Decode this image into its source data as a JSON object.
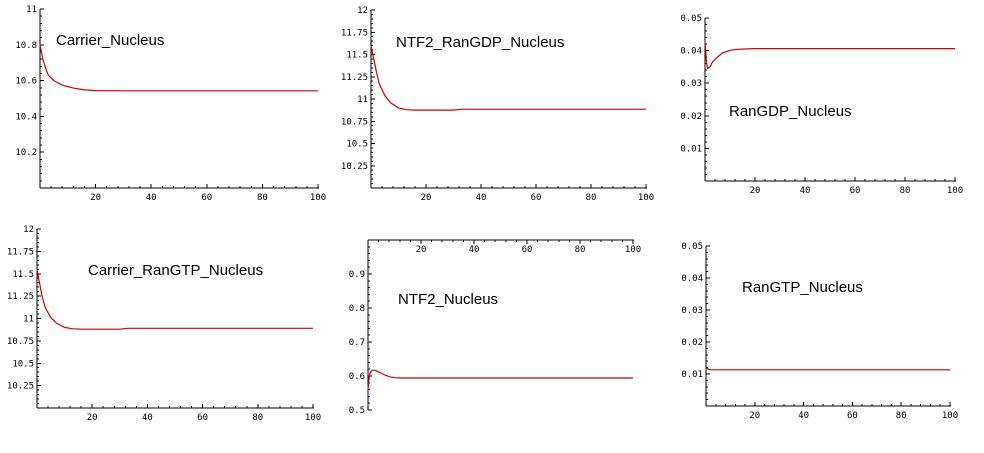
{
  "chart_data": [
    {
      "type": "line",
      "title": "Carrier_Nucleus",
      "xlim": [
        0,
        100
      ],
      "ylim": [
        10,
        11
      ],
      "x_ticks": [
        "20",
        "40",
        "60",
        "80",
        "100"
      ],
      "y_ticks": [
        "10.2",
        "10.4",
        "10.6",
        "10.8",
        "11"
      ],
      "series": [
        {
          "x": [
            0,
            1,
            2,
            3,
            5,
            8,
            12,
            16,
            20,
            30,
            50,
            100
          ],
          "y": [
            10.8,
            10.72,
            10.67,
            10.63,
            10.6,
            10.575,
            10.558,
            10.548,
            10.544,
            10.543,
            10.543,
            10.543
          ]
        }
      ]
    },
    {
      "type": "line",
      "title": "NTF2_RanGDP_Nucleus",
      "xlim": [
        0,
        100
      ],
      "ylim": [
        10,
        12
      ],
      "x_ticks": [
        "20",
        "40",
        "60",
        "80",
        "100"
      ],
      "y_ticks": [
        "10.25",
        "10.5",
        "10.75",
        "11",
        "11.25",
        "11.5",
        "11.75",
        "12"
      ],
      "series": [
        {
          "x": [
            0,
            1,
            2,
            3,
            5,
            7,
            10,
            13,
            16,
            20,
            30,
            33,
            50,
            100
          ],
          "y": [
            11.6,
            11.45,
            11.3,
            11.17,
            11.04,
            10.96,
            10.9,
            10.88,
            10.875,
            10.875,
            10.875,
            10.885,
            10.885,
            10.885
          ]
        }
      ]
    },
    {
      "type": "line",
      "title": "RanGDP_Nucleus",
      "xlim": [
        0,
        100
      ],
      "ylim": [
        0,
        0.05
      ],
      "x_ticks": [
        "20",
        "40",
        "60",
        "80",
        "100"
      ],
      "y_ticks": [
        "0.01",
        "0.02",
        "0.03",
        "0.04",
        "0.05"
      ],
      "series": [
        {
          "x": [
            0,
            0.5,
            1,
            2,
            3,
            5,
            7,
            10,
            13,
            16,
            20,
            30,
            50,
            100
          ],
          "y": [
            0.043,
            0.037,
            0.0345,
            0.035,
            0.0365,
            0.038,
            0.0393,
            0.0401,
            0.0404,
            0.0405,
            0.0406,
            0.0406,
            0.0406,
            0.0406
          ]
        }
      ]
    },
    {
      "type": "line",
      "title": "Carrier_RanGTP_Nucleus",
      "xlim": [
        0,
        100
      ],
      "ylim": [
        10,
        12
      ],
      "x_ticks": [
        "20",
        "40",
        "60",
        "80",
        "100"
      ],
      "y_ticks": [
        "10.25",
        "10.5",
        "10.75",
        "11",
        "11.25",
        "11.5",
        "11.75",
        "12"
      ],
      "series": [
        {
          "x": [
            0,
            1,
            2,
            3,
            5,
            7,
            10,
            13,
            16,
            20,
            30,
            33,
            50,
            100
          ],
          "y": [
            11.55,
            11.38,
            11.23,
            11.12,
            11.01,
            10.95,
            10.9,
            10.885,
            10.88,
            10.88,
            10.88,
            10.89,
            10.89,
            10.89
          ]
        }
      ]
    },
    {
      "type": "line",
      "title": "NTF2_Nucleus",
      "xlim": [
        0,
        100
      ],
      "ylim": [
        0.5,
        1
      ],
      "x_axis_position": "top",
      "x_ticks": [
        "20",
        "40",
        "60",
        "80",
        "100"
      ],
      "y_ticks": [
        "0.5",
        "0.6",
        "0.7",
        "0.8",
        "0.9"
      ],
      "series": [
        {
          "x": [
            0,
            0.4,
            0.8,
            1.5,
            2.5,
            4,
            6,
            8,
            10,
            13,
            16,
            20,
            30,
            50,
            100
          ],
          "y": [
            0.56,
            0.595,
            0.61,
            0.617,
            0.617,
            0.612,
            0.604,
            0.598,
            0.595,
            0.594,
            0.594,
            0.594,
            0.594,
            0.594,
            0.594
          ]
        }
      ]
    },
    {
      "type": "line",
      "title": "RanGTP_Nucleus",
      "xlim": [
        0,
        100
      ],
      "ylim": [
        0,
        0.05
      ],
      "x_ticks": [
        "20",
        "40",
        "60",
        "80",
        "100"
      ],
      "y_ticks": [
        "0.01",
        "0.02",
        "0.03",
        "0.04",
        "0.05"
      ],
      "series": [
        {
          "x": [
            0,
            1,
            2,
            4,
            8,
            20,
            50,
            100
          ],
          "y": [
            0.012,
            0.0115,
            0.0113,
            0.0113,
            0.0113,
            0.0113,
            0.0113,
            0.0113
          ]
        }
      ]
    }
  ],
  "colors": {
    "curve": "#cc0000",
    "axes": "#000000"
  }
}
